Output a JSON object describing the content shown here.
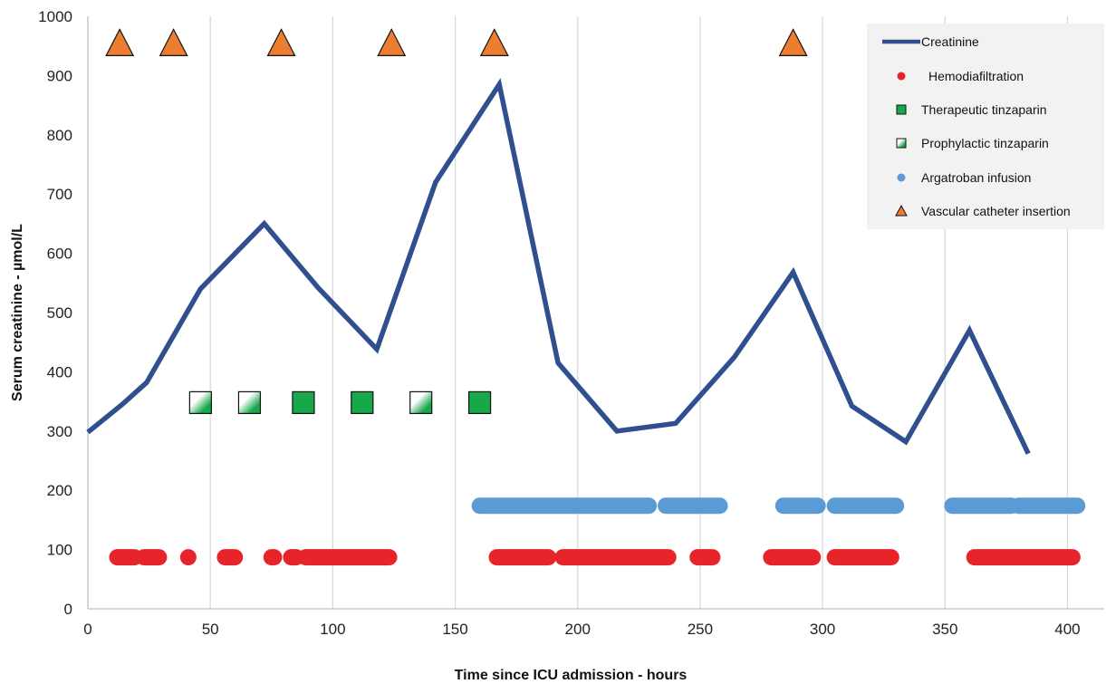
{
  "chart_data": {
    "type": "line",
    "xlabel": "Time since ICU admission - hours",
    "ylabel": "Serum creatinine - µmol/L",
    "xlim": [
      0,
      415
    ],
    "ylim": [
      0,
      1000
    ],
    "x_ticks": [
      "0",
      "50",
      "100",
      "150",
      "200",
      "250",
      "300",
      "350",
      "400"
    ],
    "y_ticks": [
      "0",
      "100",
      "200",
      "300",
      "400",
      "500",
      "600",
      "700",
      "800",
      "900",
      "1000"
    ],
    "grid": "vertical",
    "legend_position": "top-right",
    "colors": {
      "creatinine": "#2f4f8f",
      "hemodiafiltration": "#e8242b",
      "therapeutic": "#17a84a",
      "prophylactic": "#17a84a",
      "argatroban": "#5b9bd5",
      "catheter": "#ed7d31"
    },
    "series": [
      {
        "name": "Creatinine",
        "kind": "line",
        "x": [
          0,
          14,
          24,
          46,
          72,
          94,
          118,
          142,
          168,
          192,
          216,
          240,
          264,
          288,
          312,
          334,
          360,
          384
        ],
        "y": [
          298,
          345,
          382,
          540,
          650,
          542,
          438,
          720,
          885,
          415,
          300,
          313,
          425,
          568,
          342,
          282,
          470,
          262
        ]
      },
      {
        "name": "Hemodiafiltration",
        "kind": "segments",
        "y": 87,
        "segments": [
          [
            12,
            19
          ],
          [
            23,
            29
          ],
          [
            41,
            41
          ],
          [
            56,
            60
          ],
          [
            75,
            76
          ],
          [
            83,
            85
          ],
          [
            89,
            123
          ],
          [
            167,
            188
          ],
          [
            194,
            237
          ],
          [
            249,
            255
          ],
          [
            279,
            296
          ],
          [
            305,
            328
          ],
          [
            362,
            402
          ]
        ]
      },
      {
        "name": "Therapeutic tinzaparin",
        "kind": "markers",
        "marker": "square",
        "x": [
          88,
          112,
          160
        ],
        "y": [
          348,
          348,
          348
        ]
      },
      {
        "name": "Prophylactic tinzaparin",
        "kind": "markers",
        "marker": "half-square",
        "x": [
          46,
          66,
          136
        ],
        "y": [
          348,
          348,
          348
        ]
      },
      {
        "name": "Argatroban infusion",
        "kind": "segments",
        "y": 174,
        "segments": [
          [
            160,
            229
          ],
          [
            236,
            258
          ],
          [
            284,
            298
          ],
          [
            305,
            330
          ],
          [
            353,
            377
          ],
          [
            380,
            404
          ]
        ]
      },
      {
        "name": "Vascular catheter insertion",
        "kind": "markers",
        "marker": "triangle",
        "x": [
          13,
          35,
          79,
          124,
          166,
          288
        ],
        "y": [
          952,
          952,
          952,
          952,
          952,
          952
        ]
      }
    ]
  }
}
